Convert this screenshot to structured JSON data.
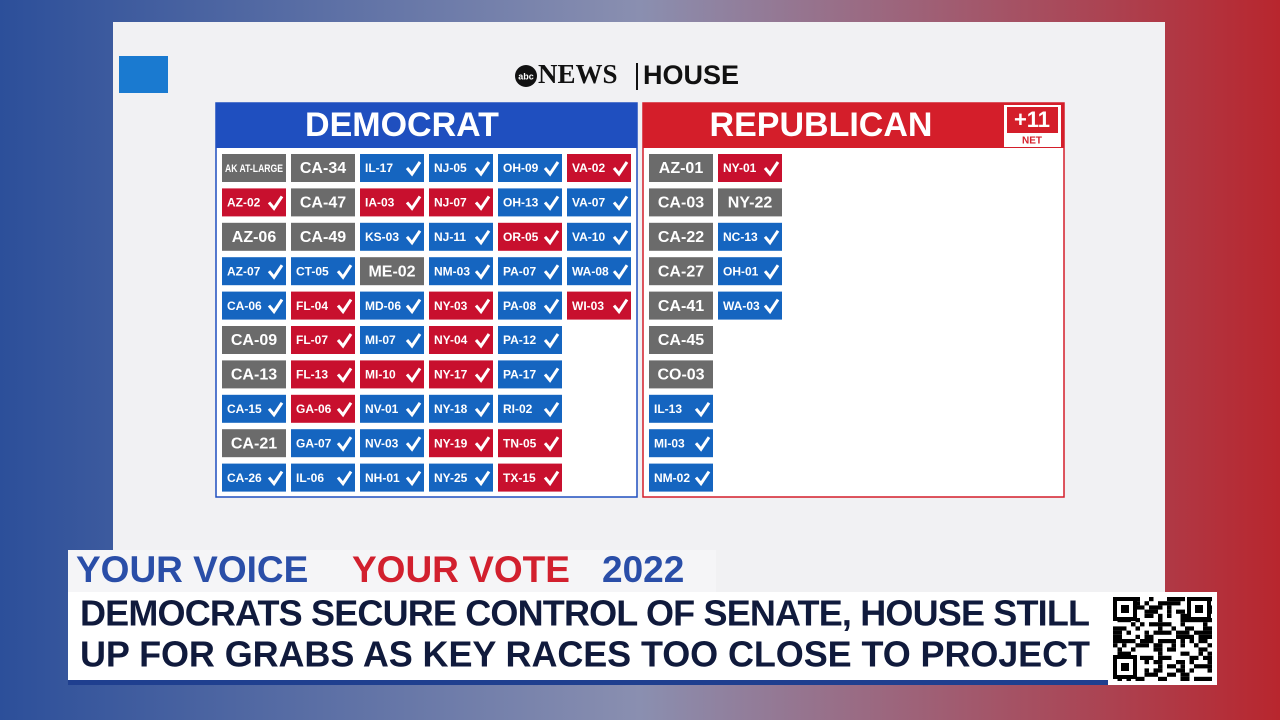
{
  "logo": {
    "abc": "abc",
    "brand": "NEWS",
    "section": "HOUSE"
  },
  "panels": [
    {
      "title": "DEMOCRAT",
      "color": "#1f4fbf",
      "columns": [
        [
          {
            "label": "AK AT-LARGE",
            "color": "#6b6b6b"
          },
          {
            "label": "AZ-02",
            "color": "#c8102e"
          },
          {
            "label": "AZ-06",
            "color": "#6b6b6b"
          },
          {
            "label": "AZ-07",
            "color": "#1565c0"
          },
          {
            "label": "CA-06",
            "color": "#1565c0"
          },
          {
            "label": "CA-09",
            "color": "#6b6b6b"
          },
          {
            "label": "CA-13",
            "color": "#6b6b6b"
          },
          {
            "label": "CA-15",
            "color": "#1565c0"
          },
          {
            "label": "CA-21",
            "color": "#6b6b6b"
          },
          {
            "label": "CA-26",
            "color": "#1565c0"
          }
        ],
        [
          {
            "label": "CA-34",
            "color": "#6b6b6b"
          },
          {
            "label": "CA-47",
            "color": "#6b6b6b"
          },
          {
            "label": "CA-49",
            "color": "#6b6b6b"
          },
          {
            "label": "CT-05",
            "color": "#1565c0"
          },
          {
            "label": "FL-04",
            "color": "#c8102e"
          },
          {
            "label": "FL-07",
            "color": "#c8102e"
          },
          {
            "label": "FL-13",
            "color": "#c8102e"
          },
          {
            "label": "GA-06",
            "color": "#c8102e"
          },
          {
            "label": "GA-07",
            "color": "#1565c0"
          },
          {
            "label": "IL-06",
            "color": "#1565c0"
          }
        ],
        [
          {
            "label": "IL-17",
            "color": "#1565c0"
          },
          {
            "label": "IA-03",
            "color": "#c8102e"
          },
          {
            "label": "KS-03",
            "color": "#1565c0"
          },
          {
            "label": "ME-02",
            "color": "#6b6b6b"
          },
          {
            "label": "MD-06",
            "color": "#1565c0"
          },
          {
            "label": "MI-07",
            "color": "#1565c0"
          },
          {
            "label": "MI-10",
            "color": "#c8102e"
          },
          {
            "label": "NV-01",
            "color": "#1565c0"
          },
          {
            "label": "NV-03",
            "color": "#1565c0"
          },
          {
            "label": "NH-01",
            "color": "#1565c0"
          }
        ],
        [
          {
            "label": "NJ-05",
            "color": "#1565c0"
          },
          {
            "label": "NJ-07",
            "color": "#c8102e"
          },
          {
            "label": "NJ-11",
            "color": "#1565c0"
          },
          {
            "label": "NM-03",
            "color": "#1565c0"
          },
          {
            "label": "NY-03",
            "color": "#c8102e"
          },
          {
            "label": "NY-04",
            "color": "#c8102e"
          },
          {
            "label": "NY-17",
            "color": "#c8102e"
          },
          {
            "label": "NY-18",
            "color": "#1565c0"
          },
          {
            "label": "NY-19",
            "color": "#c8102e"
          },
          {
            "label": "NY-25",
            "color": "#1565c0"
          }
        ],
        [
          {
            "label": "OH-09",
            "color": "#1565c0"
          },
          {
            "label": "OH-13",
            "color": "#1565c0"
          },
          {
            "label": "OR-05",
            "color": "#c8102e"
          },
          {
            "label": "PA-07",
            "color": "#1565c0"
          },
          {
            "label": "PA-08",
            "color": "#1565c0"
          },
          {
            "label": "PA-12",
            "color": "#1565c0"
          },
          {
            "label": "PA-17",
            "color": "#1565c0"
          },
          {
            "label": "RI-02",
            "color": "#1565c0"
          },
          {
            "label": "TN-05",
            "color": "#c8102e"
          },
          {
            "label": "TX-15",
            "color": "#c8102e"
          }
        ],
        [
          {
            "label": "VA-02",
            "color": "#c8102e"
          },
          {
            "label": "VA-07",
            "color": "#1565c0"
          },
          {
            "label": "VA-10",
            "color": "#1565c0"
          },
          {
            "label": "WA-08",
            "color": "#1565c0"
          },
          {
            "label": "WI-03",
            "color": "#c8102e"
          }
        ]
      ]
    },
    {
      "title": "REPUBLICAN",
      "color": "#d41e2a",
      "badge": {
        "value": "+11",
        "label": "NET"
      },
      "columns": [
        [
          {
            "label": "AZ-01",
            "color": "#6b6b6b"
          },
          {
            "label": "CA-03",
            "color": "#6b6b6b"
          },
          {
            "label": "CA-22",
            "color": "#6b6b6b"
          },
          {
            "label": "CA-27",
            "color": "#6b6b6b"
          },
          {
            "label": "CA-41",
            "color": "#6b6b6b"
          },
          {
            "label": "CA-45",
            "color": "#6b6b6b"
          },
          {
            "label": "CO-03",
            "color": "#6b6b6b"
          },
          {
            "label": "IL-13",
            "color": "#1565c0"
          },
          {
            "label": "MI-03",
            "color": "#1565c0"
          },
          {
            "label": "NM-02",
            "color": "#1565c0"
          }
        ],
        [
          {
            "label": "NY-01",
            "color": "#c8102e"
          },
          {
            "label": "NY-22",
            "color": "#6b6b6b"
          },
          {
            "label": "NC-13",
            "color": "#1565c0"
          },
          {
            "label": "OH-01",
            "color": "#1565c0"
          },
          {
            "label": "WA-03",
            "color": "#1565c0"
          }
        ]
      ]
    }
  ],
  "lower_third": {
    "slogan_1": "YOUR VOICE",
    "slogan_2": "YOUR VOTE",
    "year": "2022",
    "headline": [
      "DEMOCRATS SECURE CONTROL OF SENATE, HOUSE STILL",
      "UP FOR GRABS AS KEY RACES TOO CLOSE TO PROJECT"
    ]
  }
}
